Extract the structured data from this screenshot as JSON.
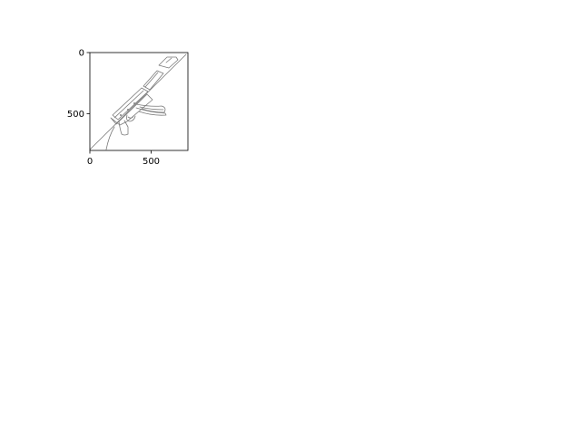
{
  "chart_data": {
    "type": "image",
    "title": "",
    "xlabel": "",
    "ylabel": "",
    "xlim": [
      0,
      800
    ],
    "ylim": [
      800,
      0
    ],
    "xticks": [
      0,
      500
    ],
    "yticks": [
      0,
      500
    ],
    "grid": false,
    "image_content": "rifle-line-drawing",
    "colors": {
      "line": "#7a7a7a",
      "axes": "#000000",
      "background": "#ffffff"
    }
  }
}
